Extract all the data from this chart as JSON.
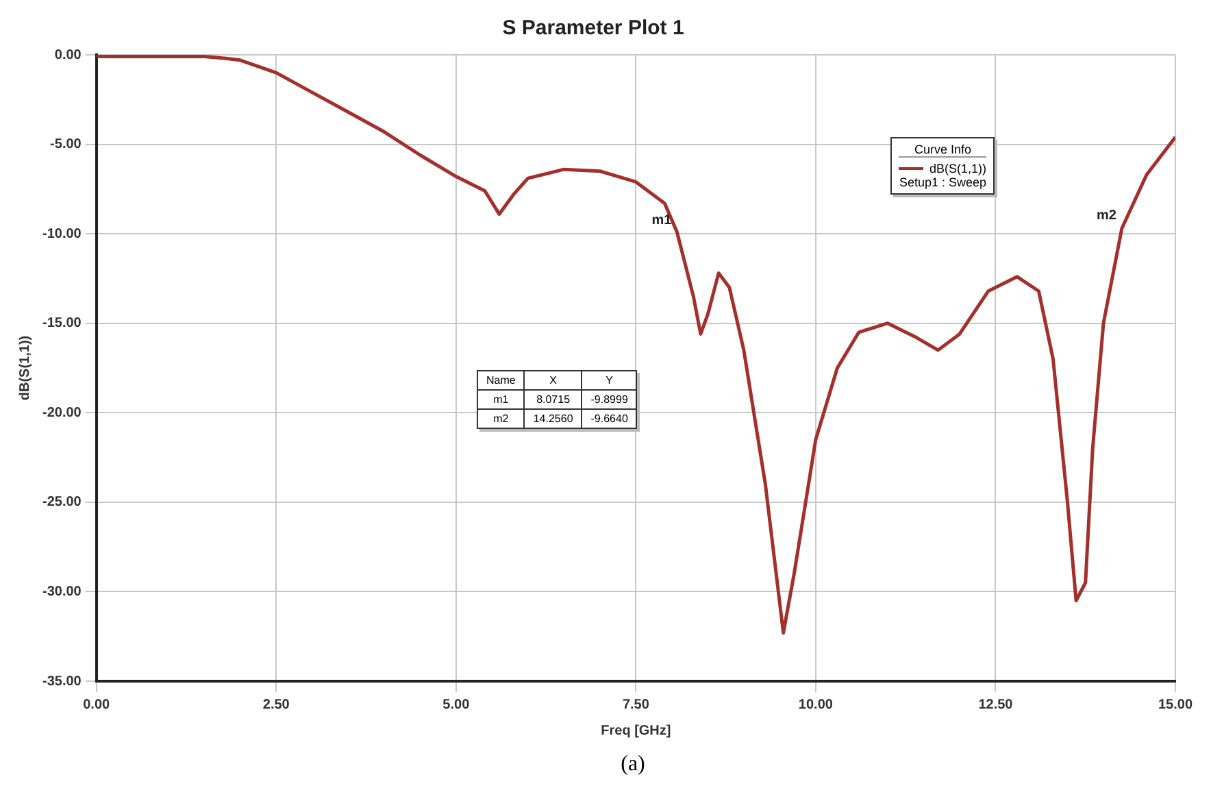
{
  "chart_data": {
    "type": "line",
    "title": "S Parameter Plot 1",
    "xlabel": "Freq [GHz]",
    "ylabel": "dB(S(1,1))",
    "legend_title": "Curve Info",
    "x": [
      0,
      1.5,
      1.8,
      2.0,
      2.5,
      3.0,
      3.5,
      4.0,
      4.5,
      5.0,
      5.4,
      5.6,
      5.8,
      6.0,
      6.5,
      7.0,
      7.5,
      7.9,
      8.0715,
      8.3,
      8.4,
      8.5,
      8.65,
      8.8,
      9.0,
      9.3,
      9.55,
      9.7,
      10.0,
      10.3,
      10.6,
      11.0,
      11.4,
      11.7,
      12.0,
      12.4,
      12.8,
      13.1,
      13.3,
      13.5,
      13.62,
      13.75,
      13.85,
      14.0,
      14.256,
      14.6,
      15.0
    ],
    "series": [
      {
        "name": "dB(S(1,1))",
        "color": "#a3302c",
        "values": [
          -0.1,
          -0.1,
          -0.2,
          -0.3,
          -1.0,
          -2.1,
          -3.2,
          -4.3,
          -5.6,
          -6.8,
          -7.6,
          -8.9,
          -7.8,
          -6.9,
          -6.4,
          -6.5,
          -7.1,
          -8.3,
          -9.9,
          -13.5,
          -15.6,
          -14.5,
          -12.2,
          -13.0,
          -16.5,
          -24.0,
          -32.3,
          -29.0,
          -21.5,
          -17.5,
          -15.5,
          -15.0,
          -15.8,
          -16.5,
          -15.6,
          -13.2,
          -12.4,
          -13.2,
          -17.0,
          -25.0,
          -30.5,
          -29.5,
          -22.0,
          -15.0,
          -9.7,
          -6.7,
          -4.6
        ]
      }
    ],
    "xlim": [
      0,
      15
    ],
    "xticks": [
      {
        "value": 0,
        "label": "0.00"
      },
      {
        "value": 2.5,
        "label": "2.50"
      },
      {
        "value": 5,
        "label": "5.00"
      },
      {
        "value": 7.5,
        "label": "7.50"
      },
      {
        "value": 10,
        "label": "10.00"
      },
      {
        "value": 12.5,
        "label": "12.50"
      },
      {
        "value": 15,
        "label": "15.00"
      }
    ],
    "ylim": [
      -35,
      0
    ],
    "yticks": [
      {
        "value": 0,
        "label": "0.00"
      },
      {
        "value": -5,
        "label": "-5.00"
      },
      {
        "value": -10,
        "label": "-10.00"
      },
      {
        "value": -15,
        "label": "-15.00"
      },
      {
        "value": -20,
        "label": "-20.00"
      },
      {
        "value": -25,
        "label": "-25.00"
      },
      {
        "value": -30,
        "label": "-30.00"
      },
      {
        "value": -35,
        "label": "-35.00"
      }
    ],
    "grid": true,
    "legend": "top right",
    "marker": "none",
    "line_style": "solid",
    "annotations": [
      {
        "text": "m1",
        "x": 8.0715,
        "y": -9.8999
      },
      {
        "text": "m2",
        "x": 14.256,
        "y": -9.664
      },
      "Setup1 : Sweep",
      "Name",
      "X",
      "Y",
      "m1",
      "8.0715",
      "-9.8999",
      "m2",
      "14.2560",
      "-9.6640",
      "(a)"
    ]
  }
}
